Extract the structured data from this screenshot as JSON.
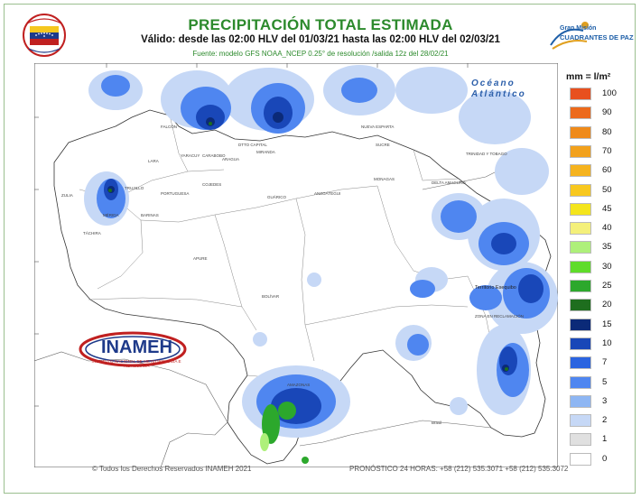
{
  "title": "PRECIPITACIÓN TOTAL ESTIMADA",
  "subtitle": "Válido: desde las 02:00 HLV del 01/03/21 hasta las 02:00 HLV del 02/03/21",
  "source": "Fuente: modelo GFS NOAA_NCEP 0.25° de resolución /salida 12z del 28/02/21",
  "logo_right": {
    "line1": "Gran Misión",
    "line2": "CUADRANTES DE PAZ"
  },
  "inameh_logo": {
    "name": "INAMEH",
    "subtitle": "INSTITUTO NACIONAL DE METEOROLOGÍA E HIDROLOGÍA"
  },
  "ocean_label": {
    "line1": "Océano",
    "line2": "Atlántico"
  },
  "legend": {
    "title": "mm = l/m²",
    "items": [
      {
        "label": "100",
        "color": "#e8501e"
      },
      {
        "label": "90",
        "color": "#ec6a1c"
      },
      {
        "label": "80",
        "color": "#ef8a1a"
      },
      {
        "label": "70",
        "color": "#f2a11c"
      },
      {
        "label": "60",
        "color": "#f5b31e"
      },
      {
        "label": "50",
        "color": "#f8c81e"
      },
      {
        "label": "45",
        "color": "#f4e51c"
      },
      {
        "label": "40",
        "color": "#f4f07a"
      },
      {
        "label": "35",
        "color": "#aef07a"
      },
      {
        "label": "30",
        "color": "#5fdc2a"
      },
      {
        "label": "25",
        "color": "#2ca82c"
      },
      {
        "label": "20",
        "color": "#1e6e1e"
      },
      {
        "label": "15",
        "color": "#0b2a78"
      },
      {
        "label": "10",
        "color": "#1947b8"
      },
      {
        "label": "7",
        "color": "#2b64e0"
      },
      {
        "label": "5",
        "color": "#4f86f0"
      },
      {
        "label": "3",
        "color": "#8eb6f3"
      },
      {
        "label": "2",
        "color": "#c6d8f6"
      },
      {
        "label": "1",
        "color": "#e0e0e0"
      },
      {
        "label": "0",
        "color": "#ffffff"
      }
    ]
  },
  "place_labels": [
    "ZULIA",
    "TRUJILLO",
    "LARA",
    "FALCÓN",
    "YARACUY",
    "CARABOBO",
    "ARAGUA",
    "MIRANDA",
    "DTTO CAPITAL",
    "PORTUGUESA",
    "COJEDES",
    "GUÁRICO",
    "BARINAS",
    "APURE",
    "ANZOÁTEGUI",
    "MONAGAS",
    "SUCRE",
    "DELTA AMACURO",
    "BOLÍVAR",
    "AMAZONAS",
    "Territorio Esequibo",
    "ZONA EN RECLAMACIÓN",
    "Brasil",
    "TÁCHIRA",
    "MÉRIDA",
    "NUEVA ESPARTA",
    "TRINIDAD Y TOBAGO"
  ],
  "footer": {
    "copyright": "© Todos los Derechos Reservados INAMEH 2021",
    "forecast": "PRONÓSTICO 24 HORAS: +58 (212) 535.3071 +58 (212) 535.3072"
  }
}
